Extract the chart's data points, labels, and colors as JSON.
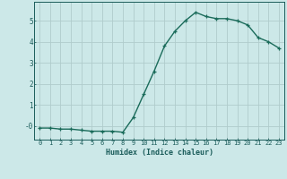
{
  "x": [
    0,
    1,
    2,
    3,
    4,
    5,
    6,
    7,
    8,
    9,
    10,
    11,
    12,
    13,
    14,
    15,
    16,
    17,
    18,
    19,
    20,
    21,
    22,
    23
  ],
  "y": [
    -0.1,
    -0.1,
    -0.15,
    -0.15,
    -0.2,
    -0.25,
    -0.25,
    -0.25,
    -0.3,
    0.4,
    1.5,
    2.6,
    3.8,
    4.5,
    5.0,
    5.4,
    5.2,
    5.1,
    5.1,
    5.0,
    4.8,
    4.2,
    4.0,
    3.7
  ],
  "line_color": "#1a6b5a",
  "marker": "+",
  "marker_color": "#1a6b5a",
  "bg_color": "#cce8e8",
  "grid_color": "#b0cccc",
  "xlabel": "Humidex (Indice chaleur)",
  "xlim": [
    -0.5,
    23.5
  ],
  "ylim": [
    -0.65,
    5.9
  ],
  "yticks": [
    0,
    1,
    2,
    3,
    4,
    5
  ],
  "ytick_labels": [
    "-0",
    "1",
    "2",
    "3",
    "4",
    "5"
  ],
  "xticks": [
    0,
    1,
    2,
    3,
    4,
    5,
    6,
    7,
    8,
    9,
    10,
    11,
    12,
    13,
    14,
    15,
    16,
    17,
    18,
    19,
    20,
    21,
    22,
    23
  ],
  "font_color": "#1a5c5a",
  "linewidth": 1.0,
  "markersize": 3.5,
  "xlabel_fontsize": 6.0,
  "tick_fontsize": 5.0
}
